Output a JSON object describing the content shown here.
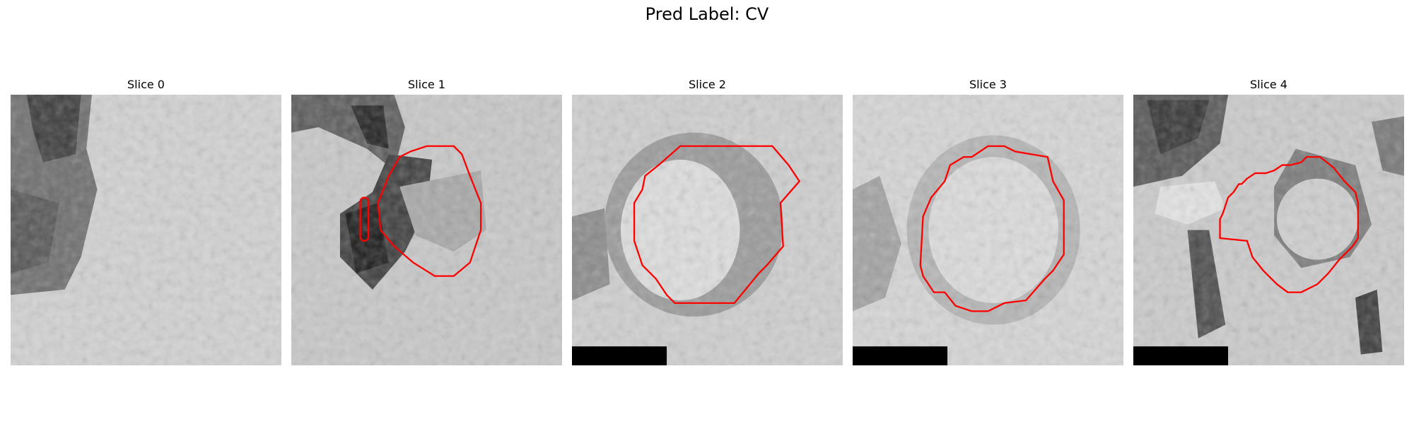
{
  "figure": {
    "title": "Pred Label: CV"
  },
  "panels": [
    {
      "title": "Slice 0",
      "has_contour": false,
      "has_scale_bar": false,
      "dark_region": "left-edge-band"
    },
    {
      "title": "Slice 1",
      "has_contour": true,
      "has_scale_bar": false,
      "dark_region": "upper-left-and-center-left"
    },
    {
      "title": "Slice 2",
      "has_contour": true,
      "has_scale_bar": true,
      "dark_region": "ring-around-vesicle"
    },
    {
      "title": "Slice 3",
      "has_contour": true,
      "has_scale_bar": true,
      "dark_region": "faint-ring"
    },
    {
      "title": "Slice 4",
      "has_contour": true,
      "has_scale_bar": true,
      "dark_region": "upper-left-and-vertical-bands"
    }
  ],
  "colors": {
    "contour": "#ff0000",
    "scale_bar": "#000000"
  }
}
